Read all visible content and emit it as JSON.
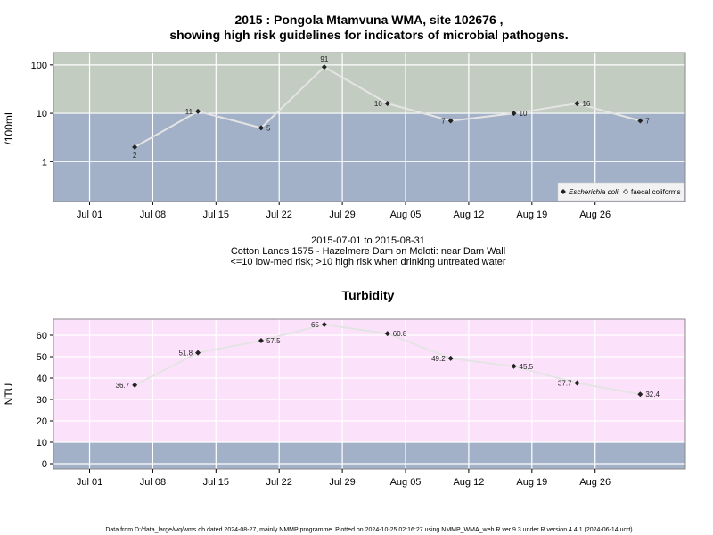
{
  "chart_data": [
    {
      "type": "line",
      "title_line1": "2015 : Pongola Mtamvuna WMA, site 102676 ,",
      "title_line2": "showing high risk guidelines for indicators of microbial pathogens.",
      "ylabel": "/100mL",
      "yscale": "log",
      "ylim": [
        0.15,
        180
      ],
      "yticks": [
        1,
        10,
        100
      ],
      "ytick_labels": [
        "1",
        "10",
        "100"
      ],
      "xlim": [
        "2015-06-27",
        "2015-09-05"
      ],
      "xticks": [
        "2015-07-01",
        "2015-07-08",
        "2015-07-15",
        "2015-07-22",
        "2015-07-29",
        "2015-08-05",
        "2015-08-12",
        "2015-08-19",
        "2015-08-26"
      ],
      "xtick_labels": [
        "Jul 01",
        "Jul 08",
        "Jul 15",
        "Jul 22",
        "Jul 29",
        "Aug 05",
        "Aug 12",
        "Aug 19",
        "Aug 26"
      ],
      "bands": [
        {
          "from": 0.15,
          "to": 10,
          "color": "#a3b1c8"
        },
        {
          "from": 10,
          "to": 180,
          "color": "#c3ccc0"
        }
      ],
      "grid": true,
      "series": [
        {
          "name": "Escherichia coli",
          "x": [
            "2015-07-06",
            "2015-07-13",
            "2015-07-20",
            "2015-07-27",
            "2015-08-03",
            "2015-08-10",
            "2015-08-17",
            "2015-08-24",
            "2015-08-31"
          ],
          "values": [
            2,
            11,
            5,
            91,
            16,
            7,
            10,
            16,
            7
          ],
          "labels": [
            "2",
            "11",
            "5",
            "91",
            "16",
            "7",
            "10",
            "16",
            "7"
          ],
          "label_pos": [
            "below",
            "left",
            "right",
            "above",
            "left",
            "left",
            "right",
            "right",
            "right"
          ]
        }
      ],
      "legend": {
        "placement": "bottom-right",
        "items": [
          {
            "label": "Escherichia coli",
            "marker": "filled-diamond",
            "italic": true
          },
          {
            "label": "faecal coliforms",
            "marker": "open-diamond",
            "italic": false
          }
        ]
      },
      "caption": [
        "2015-07-01 to 2015-08-31",
        "Cotton Lands 1575 - Hazelmere Dam on Mdloti: near Dam Wall",
        "<=10 low-med risk; >10 high risk when drinking untreated water"
      ]
    },
    {
      "type": "line",
      "title": "Turbidity",
      "ylabel": "NTU",
      "yscale": "linear",
      "ylim": [
        -2.5,
        67.5
      ],
      "yticks": [
        0,
        10,
        20,
        30,
        40,
        50,
        60
      ],
      "ytick_labels": [
        "0",
        "10",
        "20",
        "30",
        "40",
        "50",
        "60"
      ],
      "xlim": [
        "2015-06-27",
        "2015-09-05"
      ],
      "xticks": [
        "2015-07-01",
        "2015-07-08",
        "2015-07-15",
        "2015-07-22",
        "2015-07-29",
        "2015-08-05",
        "2015-08-12",
        "2015-08-19",
        "2015-08-26"
      ],
      "xtick_labels": [
        "Jul 01",
        "Jul 08",
        "Jul 15",
        "Jul 22",
        "Jul 29",
        "Aug 05",
        "Aug 12",
        "Aug 19",
        "Aug 26"
      ],
      "bands": [
        {
          "from": -2.5,
          "to": 10,
          "color": "#a3b1c8"
        },
        {
          "from": 10,
          "to": 67.5,
          "color": "#fce1fb"
        }
      ],
      "grid": true,
      "series": [
        {
          "x": [
            "2015-07-06",
            "2015-07-13",
            "2015-07-20",
            "2015-07-27",
            "2015-08-03",
            "2015-08-10",
            "2015-08-17",
            "2015-08-24",
            "2015-08-31"
          ],
          "values": [
            36.7,
            51.8,
            57.5,
            65,
            60.8,
            49.2,
            45.5,
            37.7,
            32.4
          ],
          "labels": [
            "36.7",
            "51.8",
            "57.5",
            "65",
            "60.8",
            "49.2",
            "45.5",
            "37.7",
            "32.4"
          ],
          "label_pos": [
            "left",
            "left",
            "right",
            "left",
            "right",
            "left",
            "right",
            "left",
            "right"
          ]
        }
      ]
    }
  ],
  "footer": "Data from D:/data_large/wq/wms.db dated 2024-08-27, mainly NMMP programme. Plotted on 2024-10-25 02:16:27 using NMMP_WMA_web.R ver 9.3 under R version 4.4.1 (2024-06-14 ucrt)",
  "colors": {
    "line": "#e4e4e4",
    "marker": "#222222",
    "grid": "#ffffff",
    "frame": "#888888"
  }
}
